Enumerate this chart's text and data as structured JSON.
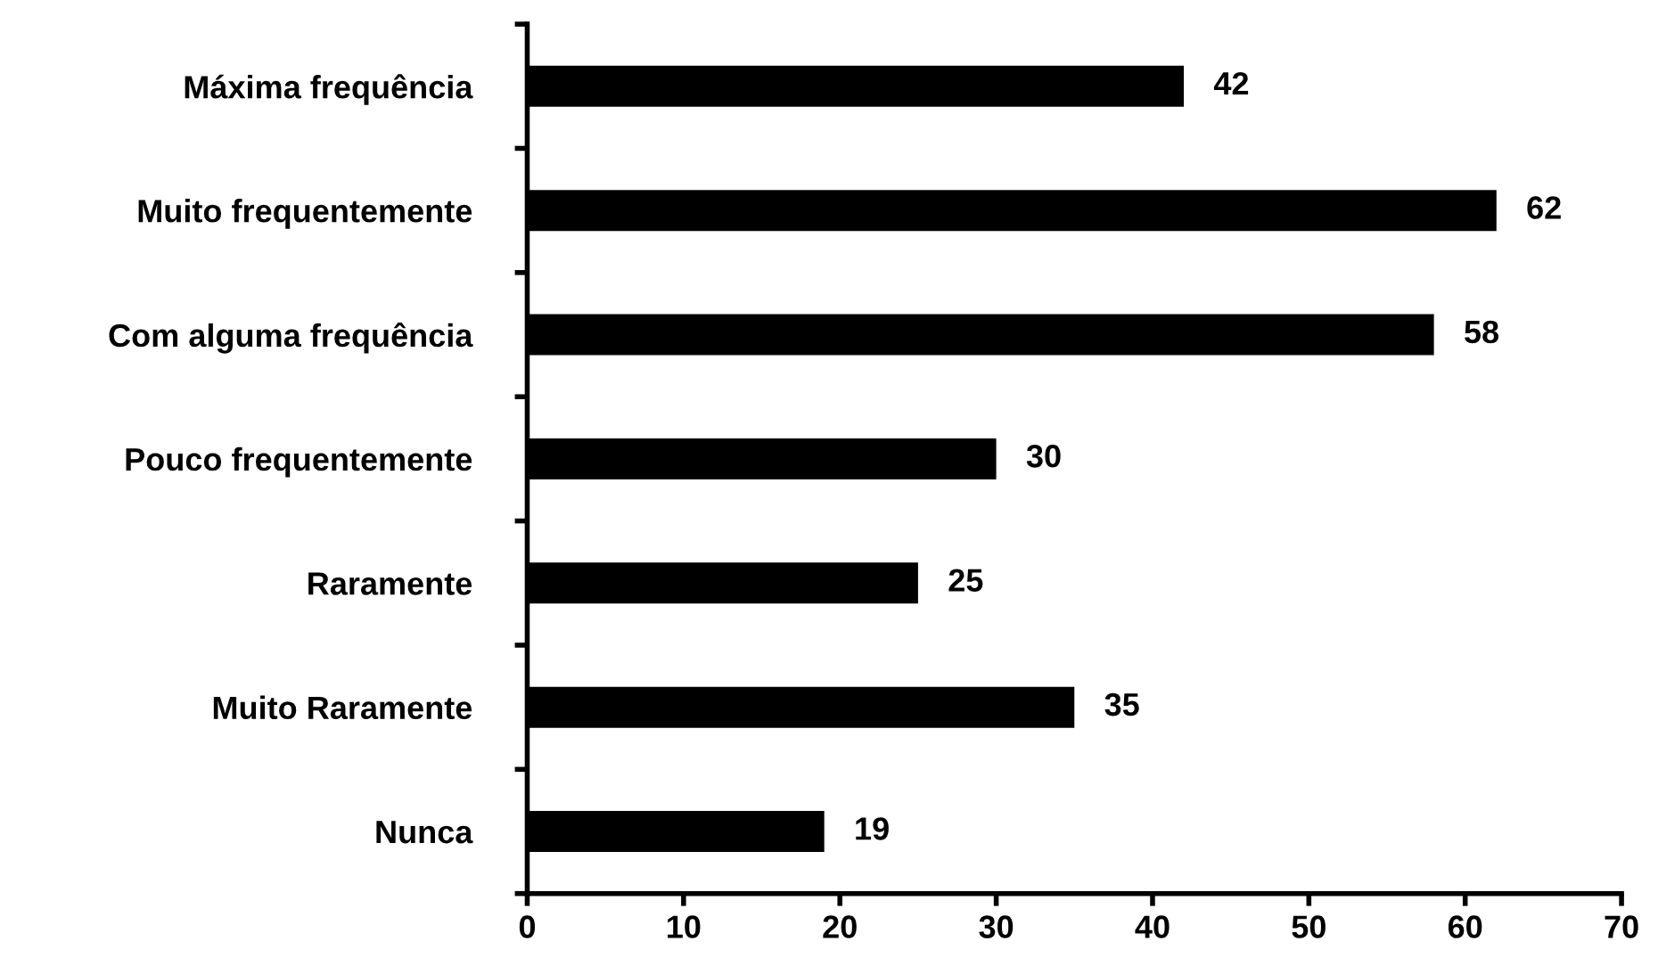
{
  "chart_data": {
    "type": "bar",
    "orientation": "horizontal",
    "categories": [
      "Máxima frequência",
      "Muito frequentemente",
      "Com alguma frequência",
      "Pouco frequentemente",
      "Raramente",
      "Muito Raramente",
      "Nunca"
    ],
    "values": [
      42,
      62,
      58,
      30,
      25,
      35,
      19
    ],
    "color": "#000000",
    "xlim": [
      0,
      70
    ],
    "xticks": [
      0,
      10,
      20,
      30,
      40,
      50,
      60,
      70
    ],
    "grid": false,
    "data_labels": true
  }
}
